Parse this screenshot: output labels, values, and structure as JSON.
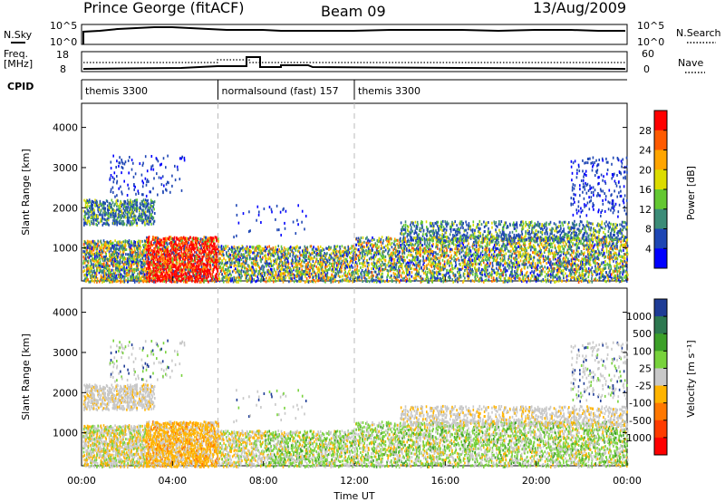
{
  "header": {
    "station": "Prince George (fitACF)",
    "beam": "Beam 09",
    "date": "13/Aug/2009"
  },
  "sky_panel": {
    "left_label": "N.Sky",
    "right_label": "N.Search",
    "left_ticks": [
      "10^5",
      "10^0"
    ],
    "right_ticks": [
      "10^5",
      "10^0"
    ]
  },
  "freq_panel": {
    "left_label_1": "Freq.",
    "left_label_2": "[MHz]",
    "right_label": "Nave",
    "left_ticks": [
      "18",
      "8"
    ],
    "right_ticks": [
      "60",
      "0"
    ]
  },
  "cpid": {
    "label": "CPID",
    "segments": [
      {
        "start_hour": 0,
        "label": "themis 3300"
      },
      {
        "start_hour": 6,
        "label": "normalsound (fast) 157"
      },
      {
        "start_hour": 12,
        "label": "themis 3300"
      }
    ]
  },
  "time_axis": {
    "label": "Time UT",
    "range_hours": [
      0,
      24
    ],
    "ticks": [
      "00:00",
      "04:00",
      "08:00",
      "12:00",
      "16:00",
      "20:00",
      "00:00"
    ],
    "tick_hours": [
      0,
      4,
      8,
      12,
      16,
      20,
      24
    ]
  },
  "chart_data": [
    {
      "type": "heatmap",
      "quantity": "power",
      "ylabel": "Slant Range [km]",
      "ylim": [
        180,
        4600
      ],
      "yticks": [
        1000,
        2000,
        3000,
        4000
      ],
      "colorbar_label": "Power [dB]",
      "colorbar_ticks": [
        "28",
        "24",
        "20",
        "16",
        "12",
        "8",
        "4"
      ],
      "colorbar_colors": [
        "#ff0000",
        "#ff5a00",
        "#ffa500",
        "#dcdc00",
        "#64c832",
        "#3c8c78",
        "#1e46b4",
        "#0000ff"
      ]
    },
    {
      "type": "heatmap",
      "quantity": "velocity",
      "ylabel": "Slant Range [km]",
      "ylim": [
        180,
        4600
      ],
      "yticks": [
        1000,
        2000,
        3000,
        4000
      ],
      "colorbar_label": "Velocity [m s⁻¹]",
      "colorbar_ticks": [
        "1000",
        "500",
        "100",
        "25",
        "-25",
        "-100",
        "-500",
        "-1000"
      ],
      "colorbar_colors": [
        "#1e3c96",
        "#2d7850",
        "#3ca028",
        "#78d23c",
        "#c8c8c8",
        "#ffb400",
        "#ff7800",
        "#ff3c00",
        "#ff0000"
      ]
    }
  ]
}
